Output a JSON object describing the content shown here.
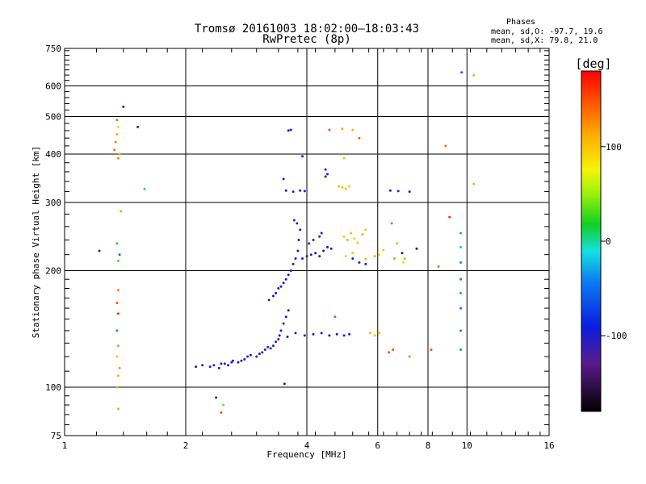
{
  "chart_data": {
    "type": "scatter",
    "title": "Tromsø 20161003 18:02:00–18:03:43",
    "subtitle": "RwPretec (8p)",
    "xlabel": "Frequency [MHz]",
    "ylabel": "Stationary phase Virtual Height [km]",
    "x_scale": "log2",
    "y_scale": "log",
    "xlim": [
      1,
      16
    ],
    "ylim": [
      75,
      750
    ],
    "x_ticks": [
      1,
      2,
      4,
      6,
      8,
      10,
      16
    ],
    "x_tick_labels": [
      "1",
      "2",
      "4",
      "6",
      "8",
      "10",
      "16"
    ],
    "y_ticks": [
      75,
      100,
      200,
      300,
      400,
      500,
      600,
      750
    ],
    "y_tick_labels": [
      "75",
      "100",
      "200",
      "300",
      "400",
      "500",
      "600",
      "750"
    ],
    "grid": true,
    "phase_box": {
      "title": "Phases",
      "line_o": "mean, sd,O: -97.7, 19.6",
      "line_x": "mean, sd,X:  79.8, 21.0"
    },
    "colorbar": {
      "label": "[deg]",
      "range": [
        -180,
        180
      ],
      "ticks": [
        100,
        0,
        -100
      ],
      "tick_labels": [
        "100",
        "0",
        "-100"
      ]
    },
    "series": [
      {
        "values": [
          [
            2.12,
            113,
            -100
          ],
          [
            2.2,
            114,
            -110
          ],
          [
            2.3,
            113,
            -95
          ],
          [
            2.35,
            114,
            -105
          ],
          [
            2.42,
            112,
            -85
          ],
          [
            2.45,
            115,
            -100
          ],
          [
            2.5,
            115,
            -110
          ],
          [
            2.55,
            114,
            -95
          ],
          [
            2.6,
            116,
            -100
          ],
          [
            2.62,
            117,
            -108
          ],
          [
            2.7,
            116,
            -98
          ],
          [
            2.75,
            117,
            -102
          ],
          [
            2.8,
            118,
            -95
          ],
          [
            2.85,
            120,
            -110
          ],
          [
            2.9,
            121,
            -100
          ],
          [
            3.0,
            120,
            -105
          ],
          [
            3.05,
            122,
            -98
          ],
          [
            3.1,
            123,
            -92
          ],
          [
            3.15,
            125,
            -110
          ],
          [
            3.2,
            127,
            -100
          ],
          [
            3.25,
            126,
            -95
          ],
          [
            3.3,
            128,
            -85
          ],
          [
            3.35,
            131,
            -100
          ],
          [
            3.4,
            133,
            -112
          ],
          [
            3.42,
            136,
            -95
          ],
          [
            3.45,
            140,
            -100
          ],
          [
            3.5,
            146,
            -105
          ],
          [
            3.55,
            152,
            -98
          ],
          [
            3.6,
            158,
            -100
          ],
          [
            3.22,
            168,
            -110
          ],
          [
            3.3,
            172,
            -100
          ],
          [
            3.35,
            175,
            -95
          ],
          [
            3.4,
            180,
            -105
          ],
          [
            3.45,
            182,
            -100
          ],
          [
            3.5,
            186,
            -110
          ],
          [
            3.55,
            190,
            -98
          ],
          [
            3.6,
            195,
            -100
          ],
          [
            3.65,
            200,
            -92
          ],
          [
            3.7,
            208,
            -108
          ],
          [
            3.75,
            215,
            -100
          ],
          [
            3.8,
            225,
            -105
          ],
          [
            3.82,
            240,
            -98
          ],
          [
            3.85,
            255,
            -100
          ],
          [
            3.78,
            265,
            -110
          ],
          [
            3.72,
            270,
            -105
          ],
          [
            3.9,
            215,
            -100
          ],
          [
            4.0,
            218,
            -95
          ],
          [
            4.1,
            220,
            -108
          ],
          [
            4.2,
            222,
            -100
          ],
          [
            4.3,
            218,
            -105
          ],
          [
            4.4,
            225,
            -100
          ],
          [
            4.5,
            230,
            -95
          ],
          [
            4.6,
            228,
            -100
          ],
          [
            4.05,
            235,
            -110
          ],
          [
            4.15,
            240,
            -98
          ],
          [
            4.3,
            245,
            -105
          ],
          [
            4.35,
            250,
            -100
          ],
          [
            5.2,
            215,
            -100
          ],
          [
            5.4,
            210,
            -105
          ],
          [
            5.6,
            208,
            -98
          ],
          [
            3.55,
            322,
            -100
          ],
          [
            3.7,
            320,
            -105
          ],
          [
            3.85,
            322,
            -98
          ],
          [
            3.95,
            321,
            -100
          ],
          [
            3.5,
            345,
            -110
          ],
          [
            3.6,
            460,
            -100
          ],
          [
            3.65,
            462,
            -105
          ],
          [
            3.9,
            395,
            -98
          ],
          [
            4.45,
            350,
            -100
          ],
          [
            4.5,
            355,
            -105
          ],
          [
            4.45,
            365,
            -110
          ],
          [
            3.58,
            135,
            -100
          ],
          [
            3.75,
            138,
            -105
          ],
          [
            3.95,
            136,
            -98
          ],
          [
            4.15,
            137,
            -100
          ],
          [
            4.35,
            138,
            -95
          ],
          [
            4.55,
            136,
            -105
          ],
          [
            4.75,
            137,
            -100
          ],
          [
            4.95,
            136,
            -110
          ],
          [
            5.1,
            137,
            -98
          ],
          [
            4.8,
            330,
            105
          ],
          [
            4.9,
            328,
            110
          ],
          [
            5.0,
            325,
            100
          ],
          [
            5.1,
            330,
            95
          ],
          [
            4.95,
            245,
            100
          ],
          [
            5.05,
            240,
            110
          ],
          [
            5.15,
            250,
            105
          ],
          [
            5.25,
            242,
            98
          ],
          [
            5.35,
            236,
            102
          ],
          [
            5.5,
            248,
            110
          ],
          [
            5.6,
            255,
            100
          ],
          [
            5.0,
            218,
            95
          ],
          [
            5.2,
            222,
            100
          ],
          [
            5.6,
            214,
            105
          ],
          [
            5.9,
            218,
            112
          ],
          [
            6.05,
            220,
            100
          ],
          [
            6.2,
            226,
            98
          ],
          [
            5.75,
            138,
            105
          ],
          [
            5.9,
            136,
            100
          ],
          [
            6.05,
            138,
            110
          ],
          [
            4.95,
            390,
            100
          ],
          [
            4.55,
            462,
            150
          ],
          [
            4.9,
            465,
            115
          ],
          [
            5.2,
            462,
            105
          ],
          [
            5.4,
            440,
            145
          ],
          [
            6.5,
            265,
            140
          ],
          [
            6.7,
            235,
            45
          ],
          [
            6.6,
            215,
            35
          ],
          [
            7.0,
            215,
            40
          ],
          [
            6.9,
            222,
            -145
          ],
          [
            7.5,
            228,
            -150
          ],
          [
            6.45,
            322,
            -100
          ],
          [
            6.75,
            321,
            -110
          ],
          [
            7.2,
            320,
            -100
          ],
          [
            1.35,
            235,
            10
          ],
          [
            1.37,
            220,
            -55
          ],
          [
            1.36,
            212,
            30
          ],
          [
            1.38,
            285,
            40
          ],
          [
            1.35,
            490,
            20
          ],
          [
            1.36,
            470,
            60
          ],
          [
            1.35,
            450,
            110
          ],
          [
            1.34,
            430,
            130
          ],
          [
            1.33,
            410,
            140
          ],
          [
            1.37,
            400,
            115
          ],
          [
            1.36,
            390,
            130
          ],
          [
            1.4,
            530,
            -100
          ],
          [
            1.52,
            470,
            -110
          ],
          [
            1.58,
            325,
            -20
          ],
          [
            1.22,
            225,
            -105
          ],
          [
            1.36,
            178,
            130
          ],
          [
            1.35,
            165,
            150
          ],
          [
            1.36,
            155,
            160
          ],
          [
            1.35,
            140,
            -40
          ],
          [
            1.36,
            128,
            120
          ],
          [
            1.35,
            120,
            100
          ],
          [
            1.37,
            112,
            120
          ],
          [
            1.36,
            107,
            110
          ],
          [
            1.35,
            100,
            115
          ],
          [
            1.36,
            88,
            110
          ],
          [
            2.38,
            94,
            -100
          ],
          [
            2.48,
            90,
            40
          ],
          [
            2.45,
            86,
            150
          ],
          [
            3.52,
            102,
            -140
          ],
          [
            8.15,
            125,
            150
          ],
          [
            8.5,
            205,
            140
          ],
          [
            9.05,
            275,
            160
          ],
          [
            8.85,
            420,
            140
          ],
          [
            9.7,
            650,
            -60
          ],
          [
            10.4,
            640,
            110
          ],
          [
            10.4,
            335,
            110
          ],
          [
            9.65,
            250,
            -30
          ],
          [
            9.65,
            230,
            -20
          ],
          [
            9.65,
            210,
            -40
          ],
          [
            9.65,
            190,
            -45
          ],
          [
            9.65,
            175,
            -35
          ],
          [
            9.65,
            160,
            -50
          ],
          [
            9.65,
            140,
            -45
          ],
          [
            9.65,
            125,
            -40
          ],
          [
            6.4,
            123,
            150
          ],
          [
            6.55,
            125,
            150
          ],
          [
            6.95,
            210,
            60
          ],
          [
            7.2,
            120,
            130
          ],
          [
            4.7,
            152,
            150
          ]
        ]
      }
    ]
  }
}
